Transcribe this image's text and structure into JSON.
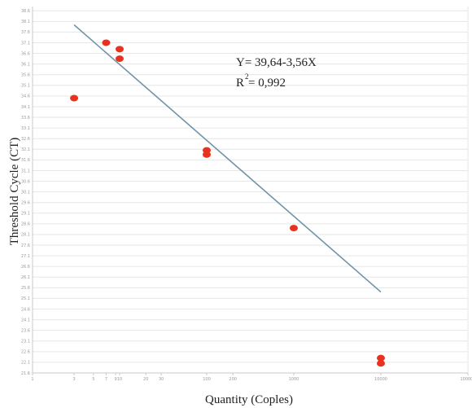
{
  "chart_data": {
    "type": "scatter",
    "xlabel": "Quantity (Coples)",
    "ylabel": "Threshold Cycle (CT)",
    "x_scale": "log",
    "xlim": [
      1,
      100000
    ],
    "ylim": [
      21.6,
      38.8
    ],
    "y_tick_step": 0.5,
    "x_ticks": [
      {
        "value": 1,
        "label": "1"
      },
      {
        "value": 3,
        "label": "3"
      },
      {
        "value": 5,
        "label": "5"
      },
      {
        "value": 7,
        "label": "7"
      },
      {
        "value": 9,
        "label": "9"
      },
      {
        "value": 10,
        "label": "10"
      },
      {
        "value": 20,
        "label": "20"
      },
      {
        "value": 30,
        "label": "30"
      },
      {
        "value": 100,
        "label": "100"
      },
      {
        "value": 200,
        "label": "200"
      },
      {
        "value": 1000,
        "label": "1000"
      },
      {
        "value": 10000,
        "label": "10000"
      },
      {
        "value": 100000,
        "label": "100000"
      }
    ],
    "points": [
      {
        "x": 3,
        "y": 34.5
      },
      {
        "x": 7,
        "y": 37.1
      },
      {
        "x": 10,
        "y": 36.8
      },
      {
        "x": 10,
        "y": 36.35
      },
      {
        "x": 100,
        "y": 32.05
      },
      {
        "x": 100,
        "y": 31.85
      },
      {
        "x": 1000,
        "y": 28.4
      },
      {
        "x": 10000,
        "y": 22.3
      },
      {
        "x": 10000,
        "y": 22.05
      }
    ],
    "trendline": {
      "intercept": 39.64,
      "slope": -3.56,
      "x_from": 3,
      "x_to": 10000
    },
    "grid": "horizontal",
    "colors": {
      "points": "#e8321e",
      "trendline": "#6f94a8",
      "grid": "#e6e6e6",
      "axis": "#c8c8c8"
    }
  },
  "annotation": {
    "equation": "Y= 39,64-3,56X",
    "r_prefix": "R",
    "r_exponent": "2",
    "r_value": "= 0,992"
  }
}
